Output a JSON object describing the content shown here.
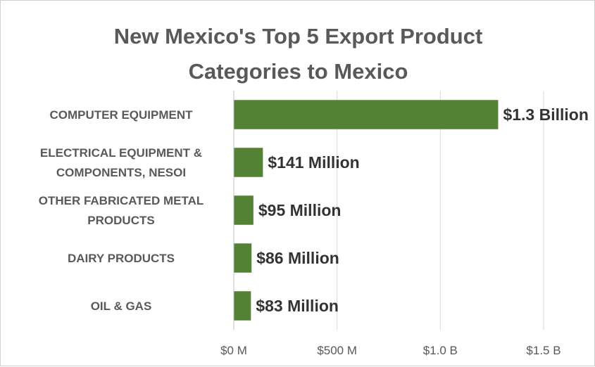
{
  "chart_data": {
    "type": "bar",
    "orientation": "horizontal",
    "title_lines": [
      "New Mexico's Top 5 Export Product",
      "Categories to Mexico"
    ],
    "categories": [
      [
        "COMPUTER EQUIPMENT"
      ],
      [
        "ELECTRICAL EQUIPMENT &",
        "COMPONENTS, NESOI"
      ],
      [
        "OTHER FABRICATED METAL",
        "PRODUCTS"
      ],
      [
        "DAIRY PRODUCTS"
      ],
      [
        "OIL & GAS"
      ]
    ],
    "values": [
      1280000000,
      141000000,
      95000000,
      86000000,
      83000000
    ],
    "data_labels": [
      "$1.3 Billion",
      "$141 Million",
      "$95 Million",
      "$86 Million",
      "$83 Million"
    ],
    "x_ticks": [
      0,
      500000000,
      1000000000,
      1500000000
    ],
    "x_tick_labels": [
      "$0 M",
      "$500 M",
      "$1.0 B",
      "$1.5 B"
    ],
    "xlim": [
      0,
      1500000000
    ],
    "grid": true,
    "bar_color": "#548235",
    "gridline_color": "#d9d9d9"
  }
}
